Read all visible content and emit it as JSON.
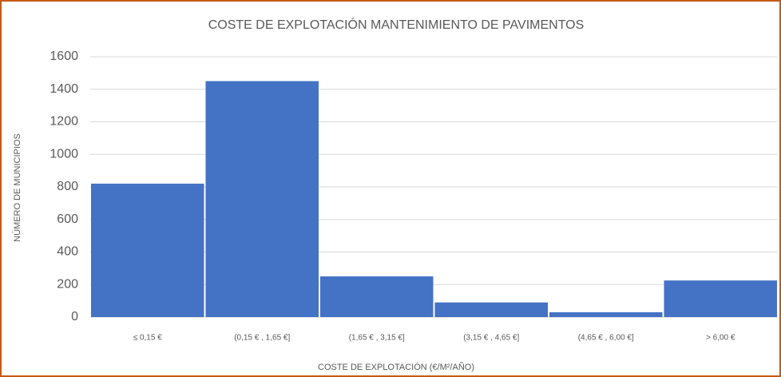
{
  "chart_data": {
    "type": "bar",
    "title": "COSTE DE EXPLOTACIÓN MANTENIMIENTO DE PAVIMENTOS",
    "x_label": "COSTE DE EXPLOTACIÓN (€/M²/AÑO)",
    "y_label": "NÚMERO DE MUNICIPIOS",
    "categories": [
      "≤ 0,15 €",
      "(0,15 € , 1,65 €]",
      "(1,65 € , 3,15 €]",
      "(3,15 € , 4,65 €]",
      "(4,65 € , 6,00 €]",
      "> 6,00 €"
    ],
    "values": [
      820,
      1450,
      250,
      90,
      30,
      225
    ],
    "color": "#4472c4",
    "ylim": [
      0,
      1600
    ],
    "yticks": [
      0,
      200,
      400,
      600,
      800,
      1000,
      1200,
      1400,
      1600
    ],
    "grid": true
  }
}
